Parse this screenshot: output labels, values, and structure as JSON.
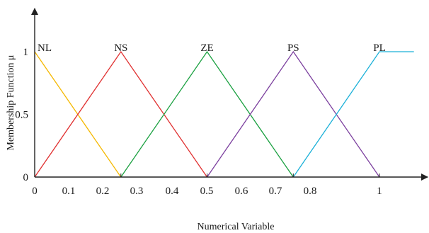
{
  "chart_data": {
    "type": "line",
    "title": "",
    "xlabel": "Numerical Variable",
    "ylabel": "Membership Function μ",
    "xlim": [
      0,
      1.15
    ],
    "ylim": [
      0,
      1.15
    ],
    "x_ticks": [
      "0",
      "0.1",
      "0.2",
      "0.3",
      "0.4",
      "0.5",
      "0.6",
      "0.7",
      "0.8",
      "1"
    ],
    "y_ticks": [
      "0",
      "0.5",
      "1"
    ],
    "grid": false,
    "legend": "none",
    "series": [
      {
        "name": "NL",
        "color": "#f5b800",
        "x": [
          0,
          0.25
        ],
        "y": [
          1,
          0
        ]
      },
      {
        "name": "NS",
        "color": "#e03030",
        "x": [
          0,
          0.25,
          0.5
        ],
        "y": [
          0,
          1,
          0
        ]
      },
      {
        "name": "ZE",
        "color": "#1aa040",
        "x": [
          0.25,
          0.5,
          0.75
        ],
        "y": [
          0,
          1,
          0
        ]
      },
      {
        "name": "PS",
        "color": "#7b3f9e",
        "x": [
          0.5,
          0.75,
          1
        ],
        "y": [
          0,
          1,
          0
        ]
      },
      {
        "name": "PL",
        "color": "#1ab0d8",
        "x": [
          0.75,
          1,
          1.1
        ],
        "y": [
          0,
          1,
          1
        ]
      }
    ]
  }
}
